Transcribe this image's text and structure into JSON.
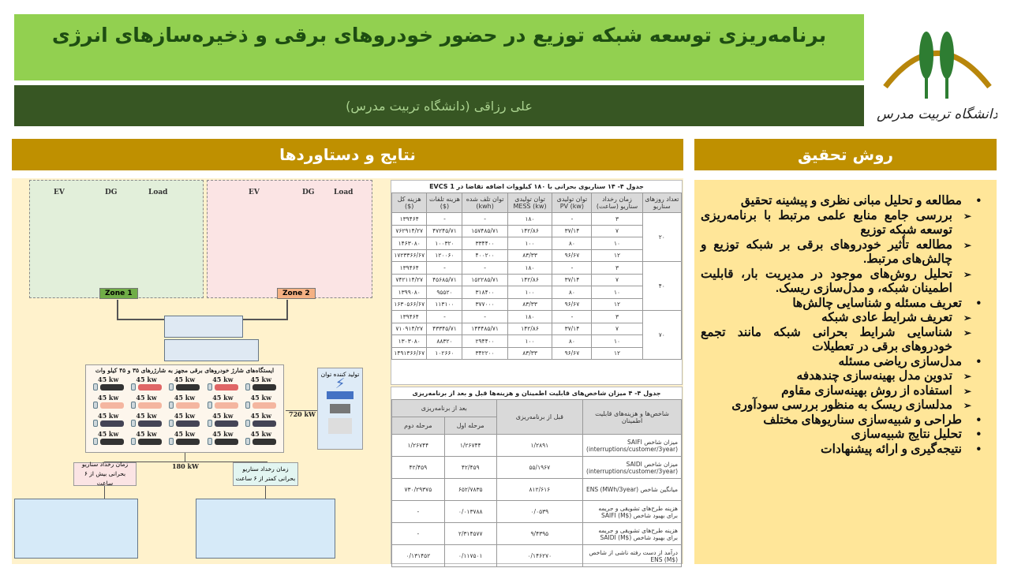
{
  "header": {
    "title": "برنامه‌ریزی توسعه شبکه توزیع در حضور خودروهای برقی و ذخیره‌سازهای انرژی",
    "author": "علی رزاقی (دانشگاه تربیت مدرس)",
    "logo_text": "دانشگاه تربیت مدرس"
  },
  "sections": {
    "results": "نتایج و دستاوردها",
    "method": "روش تحقیق"
  },
  "colors": {
    "title_bg": "#92d050",
    "author_bg": "#375623",
    "section_bg": "#bf9000",
    "panel_bg": "#fff2cc",
    "method_bg": "#ffe699"
  },
  "diagram": {
    "zone_labels": [
      "EV",
      "DG",
      "Load"
    ],
    "zone1": "Zone 1",
    "zone2": "Zone 2",
    "station_title": "ایستگاه‌های شارژ خودروهای برقی مجهز به شارژرهای ۳۵ و ۴۵ کیلو وات",
    "charger_rating": "45 kw",
    "generator_title": "تولید کننده توان",
    "link_720": "720 kW",
    "link_180": "180 kW",
    "scenario_long": "زمان رخداد سناریو بحرانی بیش از ۶ ساعت",
    "scenario_short": "زمان رخداد سناریو بحرانی کمتر از ۶ ساعت"
  },
  "table1": {
    "caption": "جدول ۴- ۱۴ سناریوی بحرانی با ۱۸۰ کیلووات اضافه تقاضا در EVCS 1",
    "headers": [
      "تعداد روزهای سناریو",
      "زمان رخداد سناریو (ساعت)",
      "توان تولیدی PV (kw)",
      "توان تولیدی MESS (kw)",
      "توان تلف شده (kwh)",
      "هزینه تلفات ($)",
      "هزینه کل ($)"
    ],
    "groups": [
      {
        "days": "۲۰",
        "rows": [
          [
            "۳",
            "-",
            "۱۸۰",
            "-",
            "-",
            "۱۳۹۴۶۴"
          ],
          [
            "۷",
            "۳۷/۱۴",
            "۱۴۲/۸۶",
            "۱۵۷۴۸۵/۷۱",
            "۴۷۲۴۵/۷۱",
            "۷۶۲۹۱۴/۲۷"
          ],
          [
            "۱۰",
            "۸۰",
            "۱۰۰",
            "۳۳۴۴۰۰",
            "۱۰۰۳۲۰",
            "۱۴۶۳۰۸۰"
          ],
          [
            "۱۲",
            "۹۶/۶۷",
            "۸۳/۳۳",
            "۴۰۰۲۰۰",
            "۱۲۰۰۶۰",
            "۱۷۲۳۳۶۶/۶۷"
          ]
        ]
      },
      {
        "days": "۴۰",
        "rows": [
          [
            "۳",
            "-",
            "۱۸۰",
            "-",
            "-",
            "۱۳۹۴۶۴"
          ],
          [
            "۷",
            "۳۷/۱۴",
            "۱۴۲/۸۶",
            "۱۵۲۲۸۵/۷۱",
            "۴۵۶۸۵/۷۱",
            "۷۴۲۱۱۴/۲۷"
          ],
          [
            "۱۰",
            "۸۰",
            "۱۰۰",
            "۳۱۸۴۰۰",
            "۹۵۵۲۰",
            "۱۳۹۹۰۸۰"
          ],
          [
            "۱۲",
            "۹۶/۶۷",
            "۸۳/۳۳",
            "۳۷۷۰۰۰",
            "۱۱۳۱۰۰",
            "۱۶۳۰۵۶۶/۶۷"
          ]
        ]
      },
      {
        "days": "۷۰",
        "rows": [
          [
            "۳",
            "-",
            "۱۸۰",
            "-",
            "-",
            "۱۳۹۴۶۴"
          ],
          [
            "۷",
            "۳۷/۱۴",
            "۱۴۲/۸۶",
            "۱۴۴۴۸۵/۷۱",
            "۴۳۳۴۵/۷۱",
            "۷۱۰۹۱۴/۲۷"
          ],
          [
            "۱۰",
            "۸۰",
            "۱۰۰",
            "۲۹۴۴۰۰",
            "۸۸۳۲۰",
            "۱۳۰۳۰۸۰"
          ],
          [
            "۱۲",
            "۹۶/۶۷",
            "۸۳/۳۳",
            "۳۴۲۲۰۰",
            "۱۰۲۶۶۰",
            "۱۴۹۱۳۶۶/۶۷"
          ]
        ]
      }
    ]
  },
  "table2": {
    "caption": "جدول ۴- ۴ میزان شاخص‌های قابلیت اطمینان و هزینه‌ها قبل و بعد از برنامه‌ریزی",
    "headers": {
      "metric": "شاخص‌ها و هزینه‌های قابلیت اطمینان",
      "before": "قبل از برنامه‌ریزی",
      "after": "بعد از برنامه‌ریزی",
      "stage1": "مرحله اول",
      "stage2": "مرحله دوم"
    },
    "rows": [
      [
        "میزان شاخص SAIFI (interruptions/customer/3year)",
        "۱/۲۸۹۱",
        "۱/۲۶۷۴۴",
        "۱/۲۶۷۴۴"
      ],
      [
        "میزان شاخص SAIDI (interruptions/customer/3year)",
        "۵۵/۱۹۶۷",
        "۴۲/۴۵۹",
        "۴۲/۴۵۹"
      ],
      [
        "میانگین شاخص ENS (MWh/3year)",
        "۸۱۲/۶۱۶",
        "۶۵۲/۷۸۳۵",
        "۷۳۰/۲۹۳۷۵"
      ],
      [
        "هزینه طرح‌های تشویقی و جریمه برای بهبود شاخص SAIFI (M$)",
        "۰/۰۵۳۹",
        "۰/۰۱۳۷۸۸",
        "-"
      ],
      [
        "هزینه طرح‌های تشویقی و جریمه برای بهبود شاخص SAIDI (M$)",
        "۹/۴۳۹۵",
        "۲/۳۱۴۵۷۷",
        "-"
      ],
      [
        "درآمد از دست رفته ناشی از شاخص ENS (M$)",
        "۰/۱۴۶۲۷۰",
        "۰/۱۱۷۵۰۱",
        "۰/۱۳۱۴۵۲"
      ]
    ]
  },
  "method": [
    {
      "text": "مطالعه و تحلیل مبانی نظری و پیشینه تحقیق",
      "sub": [
        "بررسی جامع منابع علمی مرتبط با برنامه‌ریزی توسعه شبکه توزیع",
        "مطالعه تأثیر خودروهای برقی بر شبکه توزیع و چالش‌های مرتبط.",
        "تحلیل روش‌های موجود در مدیریت بار، قابلیت اطمینان شبکه، و مدل‌سازی ریسک."
      ]
    },
    {
      "text": "تعریف مسئله و شناسایی چالش‌ها",
      "sub": [
        "تعریف شرایط عادی شبکه",
        "شناسایی شرایط بحرانی شبکه مانند تجمع خودروهای برقی در تعطیلات"
      ]
    },
    {
      "text": "مدل‌سازی ریاضی مسئله",
      "sub": [
        "تدوین مدل بهینه‌سازی چندهدفه",
        "استفاده از روش بهینه‌سازی مقاوم",
        "مدلسازی ریسک به منظور بررسی سودآوری"
      ]
    },
    {
      "text": "طراحی و شبیه‌سازی سناریوهای مختلف",
      "sub": []
    },
    {
      "text": "تحلیل نتایج شبیه‌سازی",
      "sub": []
    },
    {
      "text": "نتیجه‌گیری و ارائه پیشنهادات",
      "sub": []
    }
  ]
}
